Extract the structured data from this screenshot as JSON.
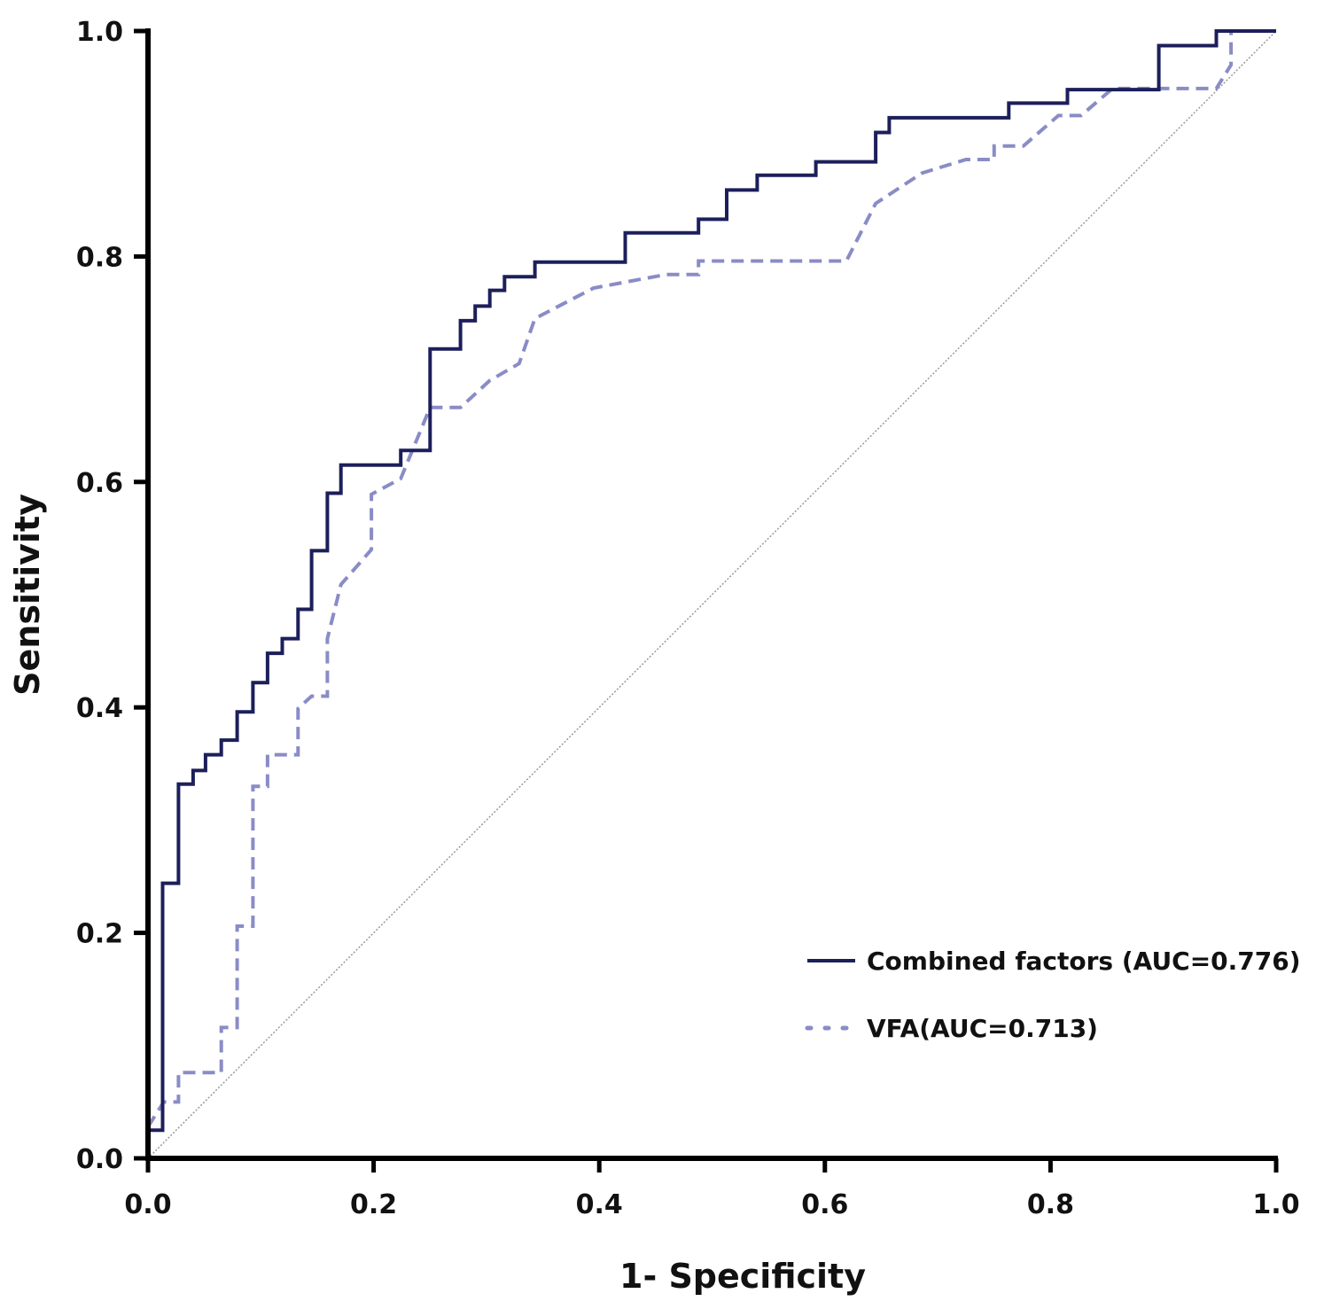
{
  "chart_data": {
    "type": "line",
    "title": "",
    "xlabel": "1- Specificity",
    "ylabel": "Sensitivity",
    "xlim": [
      0,
      1
    ],
    "ylim": [
      0,
      1
    ],
    "xticks": [
      "0.0",
      "0.2",
      "0.4",
      "0.6",
      "0.8",
      "1.0"
    ],
    "yticks": [
      "0.0",
      "0.2",
      "0.4",
      "0.6",
      "0.8",
      "1.0"
    ],
    "grid": false,
    "legend_position": "bottom-right",
    "reference_line": {
      "name": "diagonal",
      "from": [
        0,
        0
      ],
      "to": [
        1,
        1
      ],
      "color": "#999999"
    },
    "series": [
      {
        "name": "Combined factors (AUC=0.776)",
        "auc": 0.776,
        "color": "#1c1f5a",
        "style": "solid",
        "points": [
          [
            0,
            0
          ],
          [
            0,
            0.025
          ],
          [
            0.013,
            0.025
          ],
          [
            0.013,
            0.244
          ],
          [
            0.027,
            0.244
          ],
          [
            0.027,
            0.332
          ],
          [
            0.04,
            0.332
          ],
          [
            0.04,
            0.344
          ],
          [
            0.051,
            0.344
          ],
          [
            0.051,
            0.358
          ],
          [
            0.065,
            0.358
          ],
          [
            0.065,
            0.371
          ],
          [
            0.079,
            0.371
          ],
          [
            0.079,
            0.396
          ],
          [
            0.093,
            0.396
          ],
          [
            0.093,
            0.422
          ],
          [
            0.106,
            0.422
          ],
          [
            0.106,
            0.448
          ],
          [
            0.119,
            0.448
          ],
          [
            0.119,
            0.461
          ],
          [
            0.133,
            0.461
          ],
          [
            0.133,
            0.487
          ],
          [
            0.145,
            0.487
          ],
          [
            0.145,
            0.539
          ],
          [
            0.159,
            0.539
          ],
          [
            0.159,
            0.59
          ],
          [
            0.171,
            0.59
          ],
          [
            0.171,
            0.615
          ],
          [
            0.224,
            0.615
          ],
          [
            0.224,
            0.628
          ],
          [
            0.25,
            0.628
          ],
          [
            0.25,
            0.718
          ],
          [
            0.277,
            0.718
          ],
          [
            0.277,
            0.743
          ],
          [
            0.29,
            0.743
          ],
          [
            0.29,
            0.756
          ],
          [
            0.303,
            0.756
          ],
          [
            0.303,
            0.77
          ],
          [
            0.316,
            0.77
          ],
          [
            0.316,
            0.782
          ],
          [
            0.343,
            0.782
          ],
          [
            0.343,
            0.795
          ],
          [
            0.423,
            0.795
          ],
          [
            0.423,
            0.821
          ],
          [
            0.488,
            0.821
          ],
          [
            0.488,
            0.833
          ],
          [
            0.513,
            0.833
          ],
          [
            0.513,
            0.859
          ],
          [
            0.54,
            0.859
          ],
          [
            0.54,
            0.872
          ],
          [
            0.592,
            0.872
          ],
          [
            0.592,
            0.884
          ],
          [
            0.645,
            0.884
          ],
          [
            0.645,
            0.91
          ],
          [
            0.657,
            0.91
          ],
          [
            0.657,
            0.923
          ],
          [
            0.763,
            0.923
          ],
          [
            0.763,
            0.936
          ],
          [
            0.815,
            0.936
          ],
          [
            0.815,
            0.948
          ],
          [
            0.896,
            0.948
          ],
          [
            0.896,
            0.987
          ],
          [
            0.947,
            0.987
          ],
          [
            0.947,
            1.0
          ],
          [
            1.0,
            1.0
          ]
        ]
      },
      {
        "name": "VFA(AUC=0.713)",
        "auc": 0.713,
        "color": "#8a8cc6",
        "style": "dashed",
        "points": [
          [
            0,
            0.028
          ],
          [
            0.014,
            0.05
          ],
          [
            0.027,
            0.05
          ],
          [
            0.027,
            0.076
          ],
          [
            0.065,
            0.076
          ],
          [
            0.065,
            0.116
          ],
          [
            0.079,
            0.116
          ],
          [
            0.079,
            0.206
          ],
          [
            0.093,
            0.206
          ],
          [
            0.093,
            0.33
          ],
          [
            0.106,
            0.33
          ],
          [
            0.106,
            0.358
          ],
          [
            0.133,
            0.358
          ],
          [
            0.133,
            0.399
          ],
          [
            0.145,
            0.41
          ],
          [
            0.159,
            0.41
          ],
          [
            0.159,
            0.461
          ],
          [
            0.171,
            0.509
          ],
          [
            0.198,
            0.54
          ],
          [
            0.198,
            0.589
          ],
          [
            0.224,
            0.603
          ],
          [
            0.25,
            0.666
          ],
          [
            0.277,
            0.666
          ],
          [
            0.303,
            0.69
          ],
          [
            0.329,
            0.705
          ],
          [
            0.343,
            0.745
          ],
          [
            0.395,
            0.772
          ],
          [
            0.459,
            0.784
          ],
          [
            0.488,
            0.784
          ],
          [
            0.488,
            0.796
          ],
          [
            0.619,
            0.796
          ],
          [
            0.645,
            0.847
          ],
          [
            0.686,
            0.874
          ],
          [
            0.725,
            0.886
          ],
          [
            0.75,
            0.886
          ],
          [
            0.75,
            0.898
          ],
          [
            0.776,
            0.898
          ],
          [
            0.807,
            0.925
          ],
          [
            0.827,
            0.925
          ],
          [
            0.855,
            0.949
          ],
          [
            0.947,
            0.949
          ],
          [
            0.96,
            0.97
          ],
          [
            0.96,
            1.0
          ],
          [
            1.0,
            1.0
          ]
        ]
      }
    ]
  }
}
